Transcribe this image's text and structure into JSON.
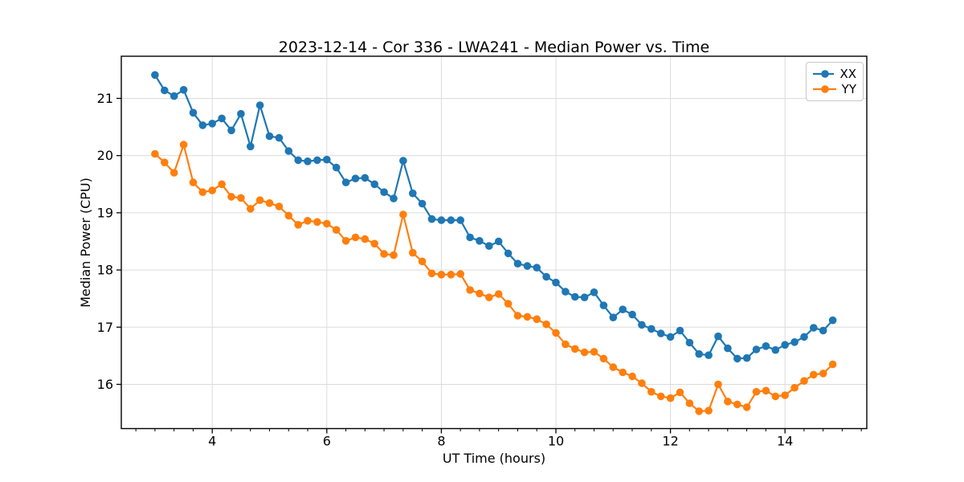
{
  "chart_data": {
    "type": "line",
    "title": "2023-12-14 - Cor 336 - LWA241 - Median Power vs. Time",
    "xlabel": "UT Time (hours)",
    "ylabel": "Median Power (CPU)",
    "xlim": [
      2.412,
      15.428
    ],
    "ylim": [
      15.227,
      21.737
    ],
    "xticks": [
      4,
      6,
      8,
      10,
      12,
      14
    ],
    "yticks": [
      16,
      17,
      18,
      19,
      20,
      21
    ],
    "minor_xtick_interval": 0.3333,
    "grid": true,
    "grid_color": "#dcdcdc",
    "legend_position": "upper right",
    "x": [
      3.0,
      3.1667,
      3.3333,
      3.5,
      3.6667,
      3.8333,
      4.0,
      4.1667,
      4.3333,
      4.5,
      4.6667,
      4.8333,
      5.0,
      5.1667,
      5.3333,
      5.5,
      5.6667,
      5.8333,
      6.0,
      6.1667,
      6.3333,
      6.5,
      6.6667,
      6.8333,
      7.0,
      7.1667,
      7.3333,
      7.5,
      7.6667,
      7.8333,
      8.0,
      8.1667,
      8.3333,
      8.5,
      8.6667,
      8.8333,
      9.0,
      9.1667,
      9.3333,
      9.5,
      9.6667,
      9.8333,
      10.0,
      10.1667,
      10.3333,
      10.5,
      10.6667,
      10.8333,
      11.0,
      11.1667,
      11.3333,
      11.5,
      11.6667,
      11.8333,
      12.0,
      12.1667,
      12.3333,
      12.5,
      12.6667,
      12.8333,
      13.0,
      13.1667,
      13.3333,
      13.5,
      13.6667,
      13.8333,
      14.0,
      14.1667,
      14.3333,
      14.5,
      14.6667,
      14.8333
    ],
    "series": [
      {
        "name": "XX",
        "color": "#1f77b4",
        "marker": "circle",
        "values": [
          21.41,
          21.14,
          21.04,
          21.15,
          20.75,
          20.53,
          20.56,
          20.65,
          20.44,
          20.73,
          20.16,
          20.88,
          20.34,
          20.31,
          20.08,
          19.92,
          19.9,
          19.92,
          19.93,
          19.79,
          19.53,
          19.6,
          19.61,
          19.5,
          19.36,
          19.25,
          19.91,
          19.34,
          19.16,
          18.89,
          18.87,
          18.87,
          18.87,
          18.57,
          18.51,
          18.42,
          18.5,
          18.29,
          18.11,
          18.07,
          18.04,
          17.88,
          17.78,
          17.62,
          17.53,
          17.52,
          17.61,
          17.38,
          17.17,
          17.31,
          17.22,
          17.04,
          16.97,
          16.89,
          16.83,
          16.94,
          16.73,
          16.53,
          16.51,
          16.84,
          16.63,
          16.45,
          16.46,
          16.61,
          16.67,
          16.6,
          16.69,
          16.74,
          16.83,
          16.99,
          16.94,
          17.12
        ]
      },
      {
        "name": "YY",
        "color": "#ff7f0e",
        "marker": "circle",
        "values": [
          20.03,
          19.88,
          19.7,
          20.19,
          19.53,
          19.36,
          19.39,
          19.5,
          19.28,
          19.26,
          19.07,
          19.22,
          19.17,
          19.11,
          18.95,
          18.79,
          18.86,
          18.84,
          18.81,
          18.7,
          18.51,
          18.57,
          18.54,
          18.46,
          18.28,
          18.26,
          18.97,
          18.3,
          18.15,
          17.94,
          17.92,
          17.92,
          17.93,
          17.65,
          17.59,
          17.52,
          17.58,
          17.41,
          17.2,
          17.18,
          17.14,
          17.05,
          16.9,
          16.7,
          16.62,
          16.56,
          16.57,
          16.45,
          16.3,
          16.21,
          16.14,
          16.02,
          15.87,
          15.79,
          15.76,
          15.86,
          15.67,
          15.53,
          15.54,
          16.0,
          15.7,
          15.65,
          15.6,
          15.87,
          15.89,
          15.79,
          15.81,
          15.94,
          16.06,
          16.17,
          16.19,
          16.35
        ]
      }
    ]
  }
}
